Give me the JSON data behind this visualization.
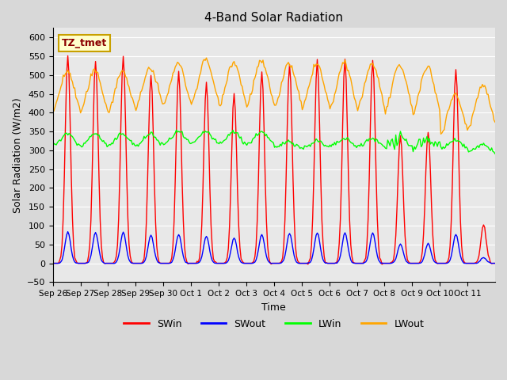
{
  "title": "4-Band Solar Radiation",
  "xlabel": "Time",
  "ylabel": "Solar Radiation (W/m2)",
  "ylim": [
    -50,
    625
  ],
  "yticks": [
    -50,
    0,
    50,
    100,
    150,
    200,
    250,
    300,
    350,
    400,
    450,
    500,
    550,
    600
  ],
  "colors": {
    "SWin": "red",
    "SWout": "blue",
    "LWin": "lime",
    "LWout": "orange"
  },
  "annotation_text": "TZ_tmet",
  "annotation_color": "#8b0000",
  "annotation_bg": "#ffffcc",
  "annotation_border": "#c8a000",
  "x_tick_labels": [
    "Sep 26",
    "Sep 27",
    "Sep 28",
    "Sep 29",
    "Sep 30",
    "Oct 1",
    "Oct 2",
    "Oct 3",
    "Oct 4",
    "Oct 5",
    "Oct 6",
    "Oct 7",
    "Oct 8",
    "Oct 9",
    "Oct 10",
    "Oct 11"
  ],
  "n_days": 16,
  "hours_per_day": 24,
  "SWin_amplitudes": [
    555,
    540,
    550,
    500,
    510,
    480,
    450,
    510,
    530,
    540,
    540,
    540,
    340,
    350,
    515,
    100
  ],
  "lwin_levels": [
    310,
    310,
    310,
    310,
    315,
    315,
    315,
    315,
    305,
    305,
    310,
    310,
    310,
    310,
    305,
    295
  ],
  "lwout_levels": [
    380,
    380,
    380,
    390,
    400,
    400,
    395,
    395,
    390,
    385,
    385,
    385,
    380,
    375,
    370,
    365
  ]
}
